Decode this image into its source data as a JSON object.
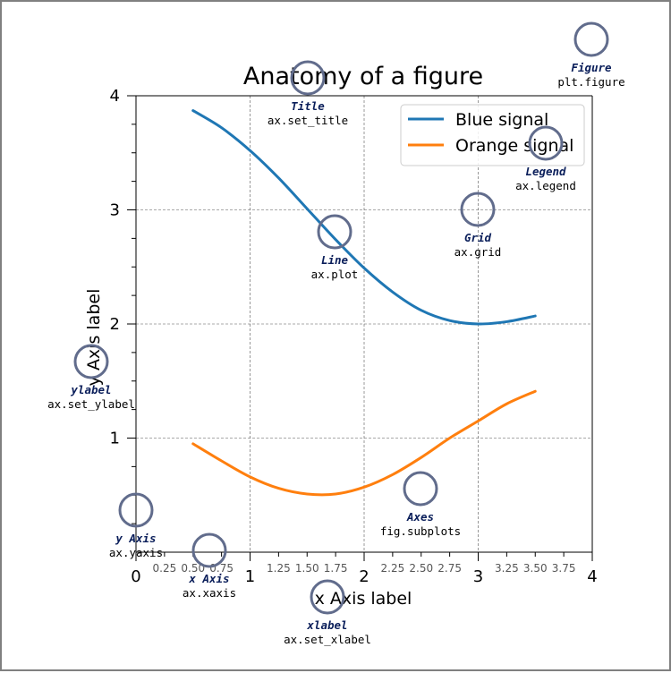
{
  "chart_data": {
    "type": "line",
    "title": "Anatomy of a figure",
    "xlabel": "x Axis label",
    "ylabel": "y Axis label",
    "xlim": [
      0,
      4
    ],
    "ylim": [
      0,
      4
    ],
    "grid": true,
    "legend_position": "top-right",
    "x_major_ticks": [
      {
        "value": 0,
        "label": "0"
      },
      {
        "value": 1,
        "label": "1"
      },
      {
        "value": 2,
        "label": "2"
      },
      {
        "value": 3,
        "label": "3"
      },
      {
        "value": 4,
        "label": "4"
      }
    ],
    "x_minor_ticks": [
      {
        "value": 0.25,
        "label": "0.25"
      },
      {
        "value": 0.5,
        "label": "0.50"
      },
      {
        "value": 0.75,
        "label": "0.75"
      },
      {
        "value": 1.25,
        "label": "1.25"
      },
      {
        "value": 1.5,
        "label": "1.50"
      },
      {
        "value": 1.75,
        "label": "1.75"
      },
      {
        "value": 2.25,
        "label": "2.25"
      },
      {
        "value": 2.5,
        "label": "2.50"
      },
      {
        "value": 2.75,
        "label": "2.75"
      },
      {
        "value": 3.25,
        "label": "3.25"
      },
      {
        "value": 3.5,
        "label": "3.50"
      },
      {
        "value": 3.75,
        "label": "3.75"
      }
    ],
    "y_major_ticks": [
      {
        "value": 1,
        "label": "1"
      },
      {
        "value": 2,
        "label": "2"
      },
      {
        "value": 3,
        "label": "3"
      },
      {
        "value": 4,
        "label": "4"
      }
    ],
    "series": [
      {
        "name": "Blue signal",
        "color": "#1f77b4",
        "x": [
          0.5,
          0.75,
          1.0,
          1.25,
          1.5,
          1.75,
          2.0,
          2.25,
          2.5,
          2.75,
          3.0,
          3.25,
          3.5
        ],
        "y": [
          3.87,
          3.72,
          3.52,
          3.28,
          3.01,
          2.74,
          2.49,
          2.28,
          2.12,
          2.03,
          2.0,
          2.02,
          2.07
        ]
      },
      {
        "name": "Orange signal",
        "color": "#ff7f0e",
        "x": [
          0.5,
          0.75,
          1.0,
          1.25,
          1.5,
          1.75,
          2.0,
          2.25,
          2.5,
          2.75,
          3.0,
          3.25,
          3.5
        ],
        "y": [
          0.95,
          0.8,
          0.66,
          0.56,
          0.51,
          0.51,
          0.57,
          0.68,
          0.83,
          1.0,
          1.15,
          1.3,
          1.41
        ]
      }
    ],
    "annotations": [
      {
        "id": "figure",
        "name": "Figure",
        "code": "plt.figure"
      },
      {
        "id": "title",
        "name": "Title",
        "code": "ax.set_title"
      },
      {
        "id": "legend",
        "name": "Legend",
        "code": "ax.legend"
      },
      {
        "id": "grid",
        "name": "Grid",
        "code": "ax.grid"
      },
      {
        "id": "line",
        "name": "Line",
        "code": "ax.plot"
      },
      {
        "id": "ylabel",
        "name": "ylabel",
        "code": "ax.set_ylabel"
      },
      {
        "id": "axes",
        "name": "Axes",
        "code": "fig.subplots"
      },
      {
        "id": "yaxis",
        "name": "y Axis",
        "code": "ax.yaxis"
      },
      {
        "id": "xaxis",
        "name": "x Axis",
        "code": "ax.xaxis"
      },
      {
        "id": "xlabel",
        "name": "xlabel",
        "code": "ax.set_xlabel"
      }
    ],
    "annotation_color": "#616c8c"
  }
}
